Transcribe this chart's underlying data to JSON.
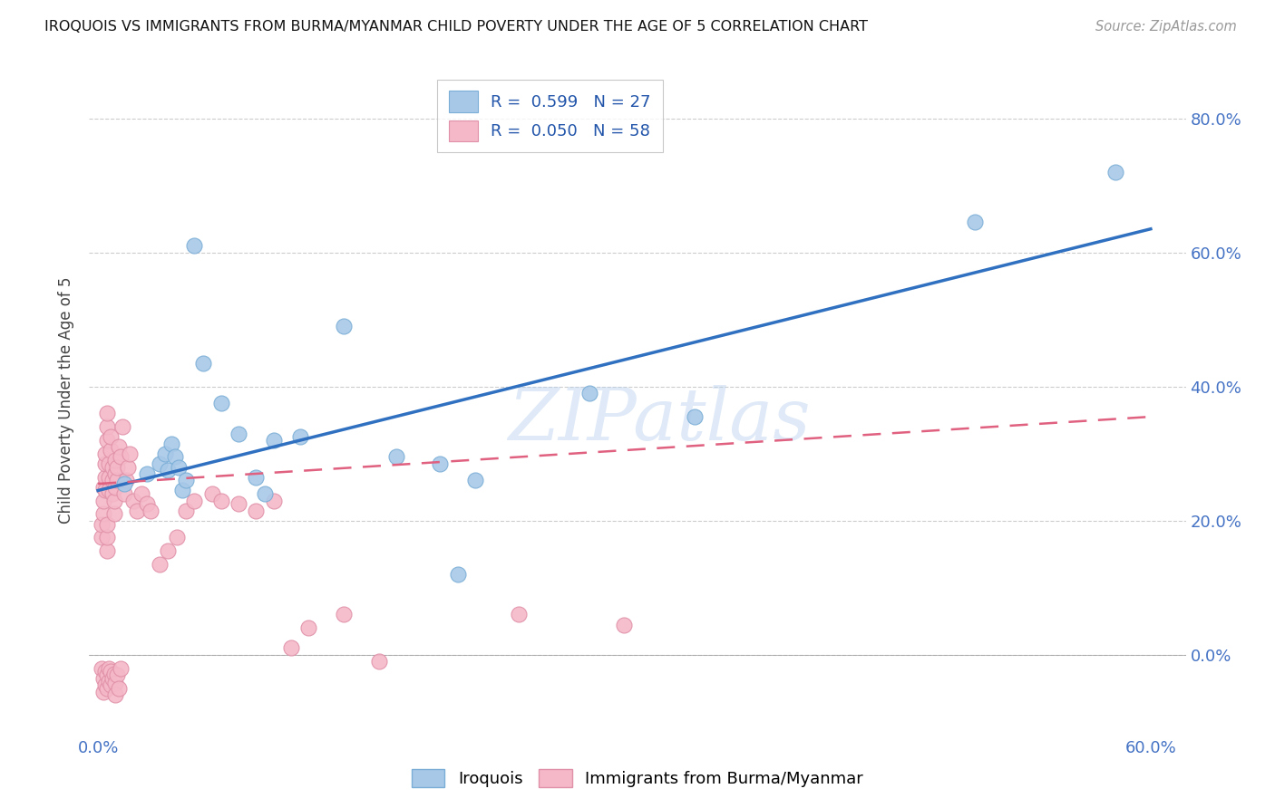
{
  "title": "IROQUOIS VS IMMIGRANTS FROM BURMA/MYANMAR CHILD POVERTY UNDER THE AGE OF 5 CORRELATION CHART",
  "source": "Source: ZipAtlas.com",
  "ylabel": "Child Poverty Under the Age of 5",
  "watermark": "ZIPatlas",
  "series1_name": "Iroquois",
  "series2_name": "Immigrants from Burma/Myanmar",
  "series1_color": "#a8c8e8",
  "series2_color": "#f4b8c8",
  "series1_edge": "#7aaed6",
  "series2_edge": "#e090a8",
  "trendline1_color": "#3070c0",
  "trendline2_color": "#e06080",
  "axis_label_color": "#4472c4",
  "grid_color": "#cccccc",
  "xlim": [
    -0.005,
    0.62
  ],
  "ylim": [
    -0.12,
    0.88
  ],
  "xtick_vals": [
    0.0,
    0.6
  ],
  "xtick_labels": [
    "0.0%",
    "60.0%"
  ],
  "ytick_vals": [
    0.0,
    0.2,
    0.4,
    0.6,
    0.8
  ],
  "ytick_labels": [
    "0.0%",
    "20.0%",
    "40.0%",
    "60.0%",
    "80.0%"
  ],
  "legend1_label": "R =  0.599   N = 27",
  "legend2_label": "R =  0.050   N = 58",
  "trendline1_x0": 0.0,
  "trendline1_y0": 0.245,
  "trendline1_x1": 0.6,
  "trendline1_y1": 0.635,
  "trendline2_x0": 0.0,
  "trendline2_y0": 0.255,
  "trendline2_x1": 0.6,
  "trendline2_y1": 0.355,
  "iroquois_x": [
    0.015,
    0.028,
    0.035,
    0.038,
    0.04,
    0.042,
    0.044,
    0.046,
    0.048,
    0.05,
    0.055,
    0.06,
    0.07,
    0.08,
    0.09,
    0.095,
    0.1,
    0.115,
    0.14,
    0.17,
    0.195,
    0.205,
    0.215,
    0.28,
    0.34,
    0.5,
    0.58
  ],
  "iroquois_y": [
    0.255,
    0.27,
    0.285,
    0.3,
    0.275,
    0.315,
    0.295,
    0.28,
    0.245,
    0.26,
    0.61,
    0.435,
    0.375,
    0.33,
    0.265,
    0.24,
    0.32,
    0.325,
    0.49,
    0.295,
    0.285,
    0.12,
    0.26,
    0.39,
    0.355,
    0.645,
    0.72
  ],
  "burma_x": [
    0.002,
    0.002,
    0.003,
    0.003,
    0.003,
    0.004,
    0.004,
    0.004,
    0.004,
    0.005,
    0.005,
    0.005,
    0.005,
    0.005,
    0.005,
    0.006,
    0.006,
    0.006,
    0.007,
    0.007,
    0.008,
    0.008,
    0.008,
    0.009,
    0.009,
    0.01,
    0.01,
    0.01,
    0.011,
    0.011,
    0.012,
    0.013,
    0.014,
    0.015,
    0.016,
    0.017,
    0.018,
    0.02,
    0.022,
    0.025,
    0.028,
    0.03,
    0.035,
    0.04,
    0.045,
    0.05,
    0.055,
    0.065,
    0.07,
    0.08,
    0.09,
    0.1,
    0.11,
    0.12,
    0.14,
    0.16,
    0.24,
    0.3
  ],
  "burma_y": [
    0.175,
    0.195,
    0.21,
    0.23,
    0.25,
    0.245,
    0.265,
    0.285,
    0.3,
    0.32,
    0.34,
    0.36,
    0.155,
    0.175,
    0.195,
    0.245,
    0.265,
    0.285,
    0.305,
    0.325,
    0.24,
    0.26,
    0.28,
    0.21,
    0.23,
    0.25,
    0.27,
    0.29,
    0.26,
    0.28,
    0.31,
    0.295,
    0.34,
    0.24,
    0.26,
    0.28,
    0.3,
    0.23,
    0.215,
    0.24,
    0.225,
    0.215,
    0.135,
    0.155,
    0.175,
    0.215,
    0.23,
    0.24,
    0.23,
    0.225,
    0.215,
    0.23,
    0.01,
    0.04,
    0.06,
    -0.01,
    0.06,
    0.045
  ],
  "neg_burma_x": [
    0.002,
    0.003,
    0.003,
    0.004,
    0.004,
    0.005,
    0.005,
    0.006,
    0.006,
    0.007,
    0.007,
    0.008,
    0.009,
    0.01,
    0.01,
    0.011,
    0.012,
    0.013
  ],
  "neg_burma_y": [
    -0.02,
    -0.035,
    -0.055,
    -0.025,
    -0.045,
    -0.03,
    -0.05,
    -0.02,
    -0.04,
    -0.025,
    -0.045,
    -0.035,
    -0.028,
    -0.042,
    -0.06,
    -0.03,
    -0.05,
    -0.02
  ]
}
